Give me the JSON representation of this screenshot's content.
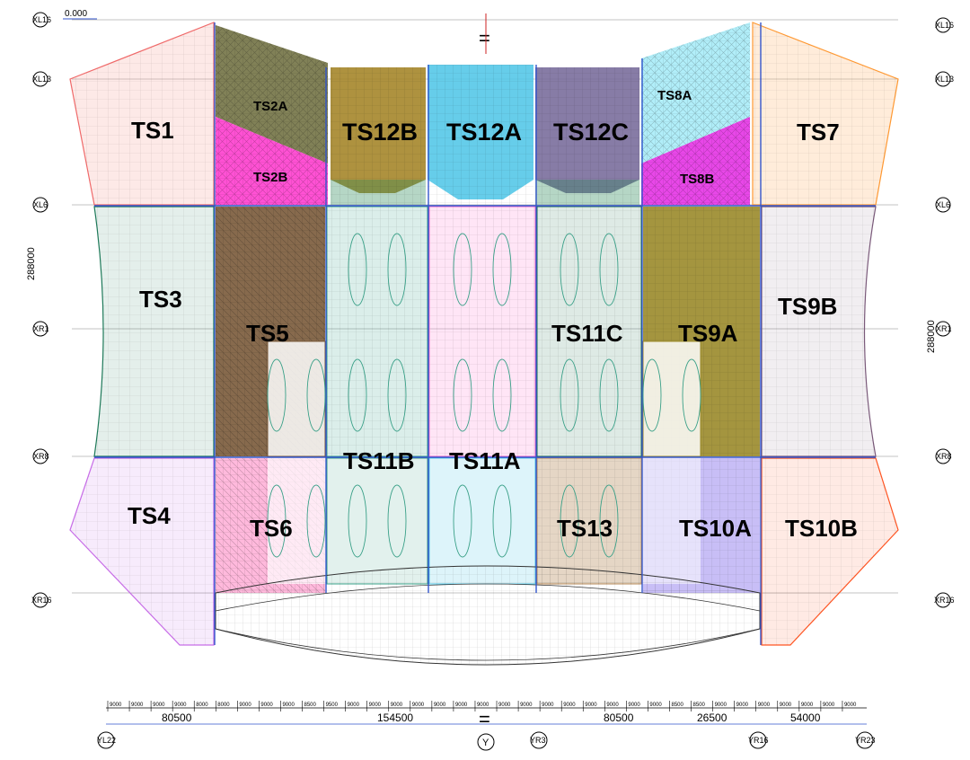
{
  "drawing": {
    "elevation_mark": "0.000",
    "left_height_dim": "288000",
    "right_height_dim": "288000",
    "center_axis_label": "Y",
    "equal_symbol": "="
  },
  "axes": {
    "left": [
      "XL16",
      "XL13",
      "XL6",
      "XR1",
      "XR8",
      "XR16"
    ],
    "right": [
      "XL16",
      "XL13",
      "XL6",
      "XR1",
      "XR8",
      "XR16"
    ],
    "bottom": [
      "YL22",
      "YR3",
      "YR16",
      "YR23"
    ]
  },
  "dimensions": {
    "bottom_totals": [
      "80500",
      "154500",
      "80500",
      "26500",
      "54000"
    ],
    "bottom_spacings": [
      "9000",
      "9000",
      "9000",
      "9000",
      "8000",
      "8000",
      "9000",
      "9000",
      "9000",
      "8500",
      "9500",
      "9000",
      "9000",
      "9000",
      "9000",
      "9000",
      "9000",
      "9000",
      "9000",
      "9000",
      "9000",
      "9000",
      "9000",
      "9000",
      "9000",
      "9000",
      "8500",
      "8500",
      "9000",
      "9000",
      "9000",
      "9000",
      "9000",
      "9000",
      "9000"
    ]
  },
  "zones": [
    {
      "id": "ts1",
      "label": "TS1",
      "color": "#f7a6a0"
    },
    {
      "id": "ts2a",
      "label": "TS2A",
      "color": "#6b6b3a"
    },
    {
      "id": "ts2b",
      "label": "TS2B",
      "color": "#ff33cc"
    },
    {
      "id": "ts12b",
      "label": "TS12B",
      "color": "#a5862a"
    },
    {
      "id": "ts12a",
      "label": "TS12A",
      "color": "#55c8e8"
    },
    {
      "id": "ts12c",
      "label": "TS12C",
      "color": "#7a6e9c"
    },
    {
      "id": "ts8a",
      "label": "TS8A",
      "color": "#a8ecf8"
    },
    {
      "id": "ts8b",
      "label": "TS8B",
      "color": "#e633e6"
    },
    {
      "id": "ts7",
      "label": "TS7",
      "color": "#ff9933"
    },
    {
      "id": "ts3",
      "label": "TS3",
      "color": "#1f7a5a"
    },
    {
      "id": "ts5",
      "label": "TS5",
      "color": "#7a5a3a"
    },
    {
      "id": "ts11c",
      "label": "TS11C",
      "color": "#1f6f4f"
    },
    {
      "id": "ts9a",
      "label": "TS9A",
      "color": "#9a8a2a"
    },
    {
      "id": "ts9b",
      "label": "TS9B",
      "color": "#7a5a7a"
    },
    {
      "id": "ts11b",
      "label": "TS11B",
      "color": "#3aa088"
    },
    {
      "id": "ts11a",
      "label": "TS11A",
      "color": "#ff99dd"
    },
    {
      "id": "ts4",
      "label": "TS4",
      "color": "#d79cf0"
    },
    {
      "id": "ts6",
      "label": "TS6",
      "color": "#ff80c0"
    },
    {
      "id": "ts13",
      "label": "TS13",
      "color": "#b58a5a"
    },
    {
      "id": "ts10a",
      "label": "TS10A",
      "color": "#9a88ee"
    },
    {
      "id": "ts10b",
      "label": "TS10B",
      "color": "#ff5522"
    }
  ]
}
